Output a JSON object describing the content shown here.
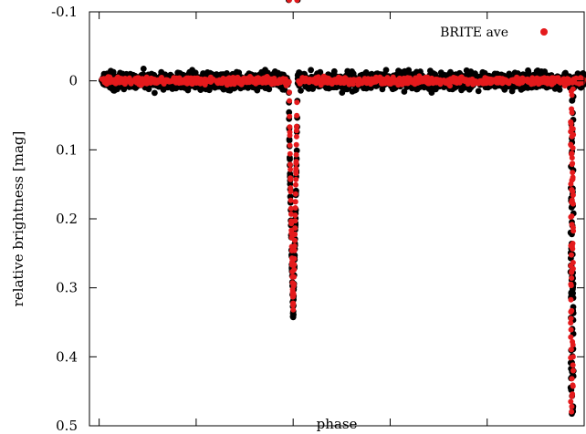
{
  "chart_data": {
    "type": "scatter",
    "title": "",
    "xlabel": "phase",
    "ylabel": "relative brightness [mag]",
    "xlim": [
      -0.02,
      1.0
    ],
    "ylim": [
      0.5,
      -0.1
    ],
    "y_inverted": true,
    "xticks": [
      "0",
      "0.2",
      "0.4",
      "0.6",
      "0.8",
      "1"
    ],
    "xtick_values": [
      0,
      0.2,
      0.4,
      0.6,
      0.8,
      1.0
    ],
    "yticks": [
      "-0.1",
      "0",
      "0.1",
      "0.2",
      "0.3",
      "0.4",
      "0.5"
    ],
    "ytick_values": [
      -0.1,
      0,
      0.1,
      0.2,
      0.3,
      0.4,
      0.5
    ],
    "grid": false,
    "legend_position": "top-right",
    "series": [
      {
        "name": "",
        "color": "#000000",
        "description_values": {
          "out_of_eclipse_level": 0.0,
          "scatter": 0.012,
          "primary_eclipse_phase": 0.4,
          "primary_eclipse_depth": 0.342,
          "primary_eclipse_halfwidth": 0.009,
          "secondary_eclipse_phase": 0.975,
          "secondary_eclipse_depth": 0.49
        }
      },
      {
        "name": "BRITE ave",
        "color": "#e41a1c",
        "description_values": {
          "out_of_eclipse_level": 0.0,
          "scatter": 0.005,
          "primary_eclipse_phase": 0.4,
          "primary_eclipse_depth": 0.33,
          "primary_eclipse_halfwidth": 0.008,
          "secondary_eclipse_phase": 0.975,
          "secondary_eclipse_depth": 0.48
        }
      }
    ]
  }
}
